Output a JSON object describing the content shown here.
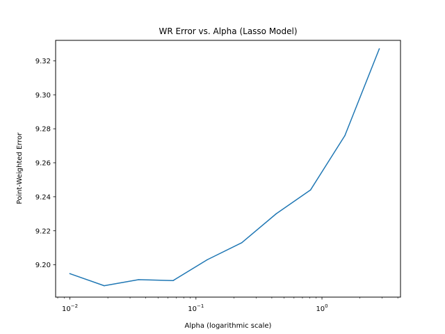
{
  "chart_data": {
    "type": "line",
    "title": "WR Error vs. Alpha (Lasso Model)",
    "xlabel": "Alpha (logarithmic scale)",
    "ylabel": "Point-Weighted Error",
    "x_scale": "log",
    "xlim": [
      0.0077,
      4.2
    ],
    "ylim": [
      9.181,
      9.332
    ],
    "x_ticks": [
      {
        "value": 0.01,
        "base": "10",
        "exp": "−2"
      },
      {
        "value": 0.1,
        "base": "10",
        "exp": "−1"
      },
      {
        "value": 1,
        "base": "10",
        "exp": "0"
      }
    ],
    "y_ticks": [
      {
        "value": 9.2,
        "label": "9.20"
      },
      {
        "value": 9.22,
        "label": "9.22"
      },
      {
        "value": 9.24,
        "label": "9.24"
      },
      {
        "value": 9.26,
        "label": "9.26"
      },
      {
        "value": 9.28,
        "label": "9.28"
      },
      {
        "value": 9.3,
        "label": "9.30"
      },
      {
        "value": 9.32,
        "label": "9.32"
      }
    ],
    "grid": false,
    "legend": "none",
    "series": [
      {
        "color": "#1f77b4",
        "x": [
          0.01,
          0.0187,
          0.0351,
          0.0658,
          0.123,
          0.231,
          0.433,
          0.811,
          1.52,
          2.85
        ],
        "y": [
          9.1948,
          9.1877,
          9.1913,
          9.1907,
          9.203,
          9.213,
          9.23,
          9.244,
          9.276,
          9.327
        ]
      }
    ]
  }
}
